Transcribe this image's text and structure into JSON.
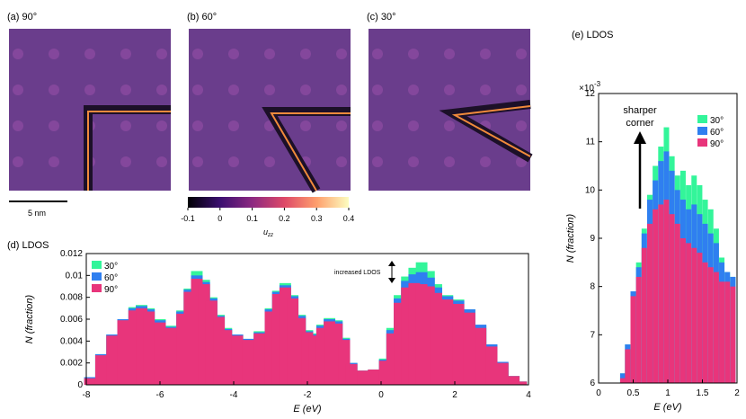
{
  "panels": {
    "a": {
      "label": "(a) 90°"
    },
    "b": {
      "label": "(b) 60°"
    },
    "c": {
      "label": "(c) 30°"
    },
    "d": {
      "label": "(d) LDOS"
    },
    "e": {
      "label": "(e) LDOS"
    }
  },
  "scalebar": {
    "label": "5 nm"
  },
  "colorbar": {
    "label": "u",
    "label_sub": "zz",
    "ticks": [
      "-0.1",
      "0",
      "0.1",
      "0.2",
      "0.3",
      "0.4"
    ],
    "tick_values": [
      -0.1,
      0,
      0.1,
      0.2,
      0.3,
      0.4
    ],
    "range": [
      -0.1,
      0.4
    ]
  },
  "colors": {
    "s30": "#33f59a",
    "s60": "#2f7ff0",
    "s90": "#e8357b",
    "map_bg": "#6a3d8c",
    "map_dot": "#8b4aa0",
    "defect_dark": "#1c1028",
    "defect_hot": "#f08a3c"
  },
  "chart_data": [
    {
      "id": "d",
      "type": "bar",
      "title": "(d) LDOS",
      "xlabel": "E (eV)",
      "ylabel": "N (fraction)",
      "xlim": [
        -8,
        4
      ],
      "ylim": [
        0,
        0.012
      ],
      "xticks": [
        "-8",
        "-6",
        "-4",
        "-2",
        "0",
        "2",
        "4"
      ],
      "xtick_values": [
        -8,
        -6,
        -4,
        -2,
        0,
        2,
        4
      ],
      "yticks": [
        "0",
        "0.002",
        "0.004",
        "0.006",
        "0.008",
        "0.01",
        "0.012"
      ],
      "ytick_values": [
        0,
        0.002,
        0.004,
        0.006,
        0.008,
        0.01,
        0.012
      ],
      "legend": "top-left",
      "annotation": "increased LDOS",
      "x": [
        -7.9,
        -7.6,
        -7.3,
        -7.0,
        -6.7,
        -6.5,
        -6.3,
        -6.0,
        -5.7,
        -5.4,
        -5.2,
        -5.0,
        -4.8,
        -4.6,
        -4.4,
        -4.2,
        -3.9,
        -3.6,
        -3.3,
        -3.0,
        -2.8,
        -2.6,
        -2.4,
        -2.2,
        -2.0,
        -1.8,
        -1.6,
        -1.4,
        -1.2,
        -1.0,
        -0.8,
        -0.5,
        -0.2,
        0.1,
        0.3,
        0.5,
        0.7,
        0.9,
        1.1,
        1.3,
        1.5,
        1.8,
        2.1,
        2.4,
        2.7,
        3.0,
        3.3,
        3.6,
        3.8
      ],
      "series": [
        {
          "name": "30°",
          "values": [
            0.0007,
            0.0028,
            0.0046,
            0.006,
            0.0071,
            0.0073,
            0.007,
            0.006,
            0.0054,
            0.0068,
            0.0088,
            0.0104,
            0.0096,
            0.008,
            0.0064,
            0.0052,
            0.0046,
            0.0042,
            0.0049,
            0.007,
            0.0086,
            0.0093,
            0.0082,
            0.0064,
            0.005,
            0.0047,
            0.0055,
            0.0061,
            0.0059,
            0.0043,
            0.002,
            0.0013,
            0.0014,
            0.0024,
            0.0052,
            0.0082,
            0.0099,
            0.0107,
            0.0112,
            0.0104,
            0.0092,
            0.0082,
            0.0078,
            0.0069,
            0.0054,
            0.0036,
            0.002,
            0.0008,
            0.0003
          ]
        },
        {
          "name": "60°",
          "values": [
            0.0007,
            0.0028,
            0.0046,
            0.006,
            0.007,
            0.0072,
            0.0069,
            0.0059,
            0.0053,
            0.0067,
            0.0087,
            0.01,
            0.0094,
            0.0079,
            0.0063,
            0.0051,
            0.0046,
            0.0042,
            0.0048,
            0.0069,
            0.0085,
            0.0091,
            0.0081,
            0.0063,
            0.0049,
            0.0046,
            0.0054,
            0.006,
            0.0058,
            0.0042,
            0.002,
            0.0013,
            0.0014,
            0.0023,
            0.005,
            0.0079,
            0.0095,
            0.0101,
            0.0103,
            0.0098,
            0.0089,
            0.0081,
            0.0077,
            0.0069,
            0.0055,
            0.0037,
            0.0021,
            0.0008,
            0.0003
          ]
        },
        {
          "name": "90°",
          "values": [
            0.0006,
            0.0027,
            0.0045,
            0.0059,
            0.0068,
            0.007,
            0.0067,
            0.0057,
            0.0052,
            0.0065,
            0.0085,
            0.0097,
            0.0092,
            0.0077,
            0.0062,
            0.005,
            0.0045,
            0.0041,
            0.0047,
            0.0067,
            0.0083,
            0.0089,
            0.0079,
            0.0061,
            0.0048,
            0.0045,
            0.0052,
            0.0058,
            0.0056,
            0.0041,
            0.0019,
            0.0013,
            0.0014,
            0.0022,
            0.0047,
            0.0075,
            0.0089,
            0.0093,
            0.0092,
            0.009,
            0.0084,
            0.0078,
            0.0074,
            0.0066,
            0.0052,
            0.0035,
            0.002,
            0.0008,
            0.0003
          ]
        }
      ]
    },
    {
      "id": "e",
      "type": "bar",
      "title": "(e) LDOS",
      "xlabel": "E (eV)",
      "ylabel": "N (fraction)",
      "xlim": [
        0,
        2
      ],
      "ylim": [
        6,
        12
      ],
      "y_multiplier": "×10-3",
      "multiplier_base": "×10",
      "multiplier_exp": "-3",
      "xticks": [
        "0",
        "0.5",
        "1",
        "1.5",
        "2"
      ],
      "xtick_values": [
        0,
        0.5,
        1,
        1.5,
        2
      ],
      "yticks": [
        "6",
        "7",
        "8",
        "9",
        "10",
        "11",
        "12"
      ],
      "ytick_values": [
        6,
        7,
        8,
        9,
        10,
        11,
        12
      ],
      "legend": "top-right",
      "annotation_line1": "sharper",
      "annotation_line2": "corner",
      "x": [
        0.35,
        0.42,
        0.5,
        0.58,
        0.66,
        0.74,
        0.82,
        0.9,
        0.98,
        1.06,
        1.14,
        1.22,
        1.3,
        1.38,
        1.46,
        1.54,
        1.62,
        1.7,
        1.78,
        1.86,
        1.94
      ],
      "series": [
        {
          "name": "30°",
          "values": [
            6.2,
            6.8,
            7.9,
            8.5,
            9.2,
            9.9,
            10.5,
            10.9,
            11.3,
            10.7,
            10.3,
            10.4,
            10.1,
            10.3,
            10.1,
            9.8,
            9.6,
            9.2,
            8.6,
            8.3,
            8.2
          ]
        },
        {
          "name": "60°",
          "values": [
            6.2,
            6.8,
            7.9,
            8.4,
            9.1,
            9.8,
            10.2,
            10.6,
            10.8,
            10.4,
            10.0,
            9.8,
            9.6,
            9.7,
            9.5,
            9.3,
            9.1,
            8.9,
            8.5,
            8.3,
            8.2
          ]
        },
        {
          "name": "90°",
          "values": [
            6.1,
            6.7,
            7.8,
            8.2,
            8.8,
            9.3,
            9.6,
            9.7,
            9.8,
            9.5,
            9.3,
            9.0,
            8.9,
            8.8,
            8.7,
            8.5,
            8.4,
            8.3,
            8.1,
            8.1,
            8.0
          ]
        }
      ]
    }
  ]
}
